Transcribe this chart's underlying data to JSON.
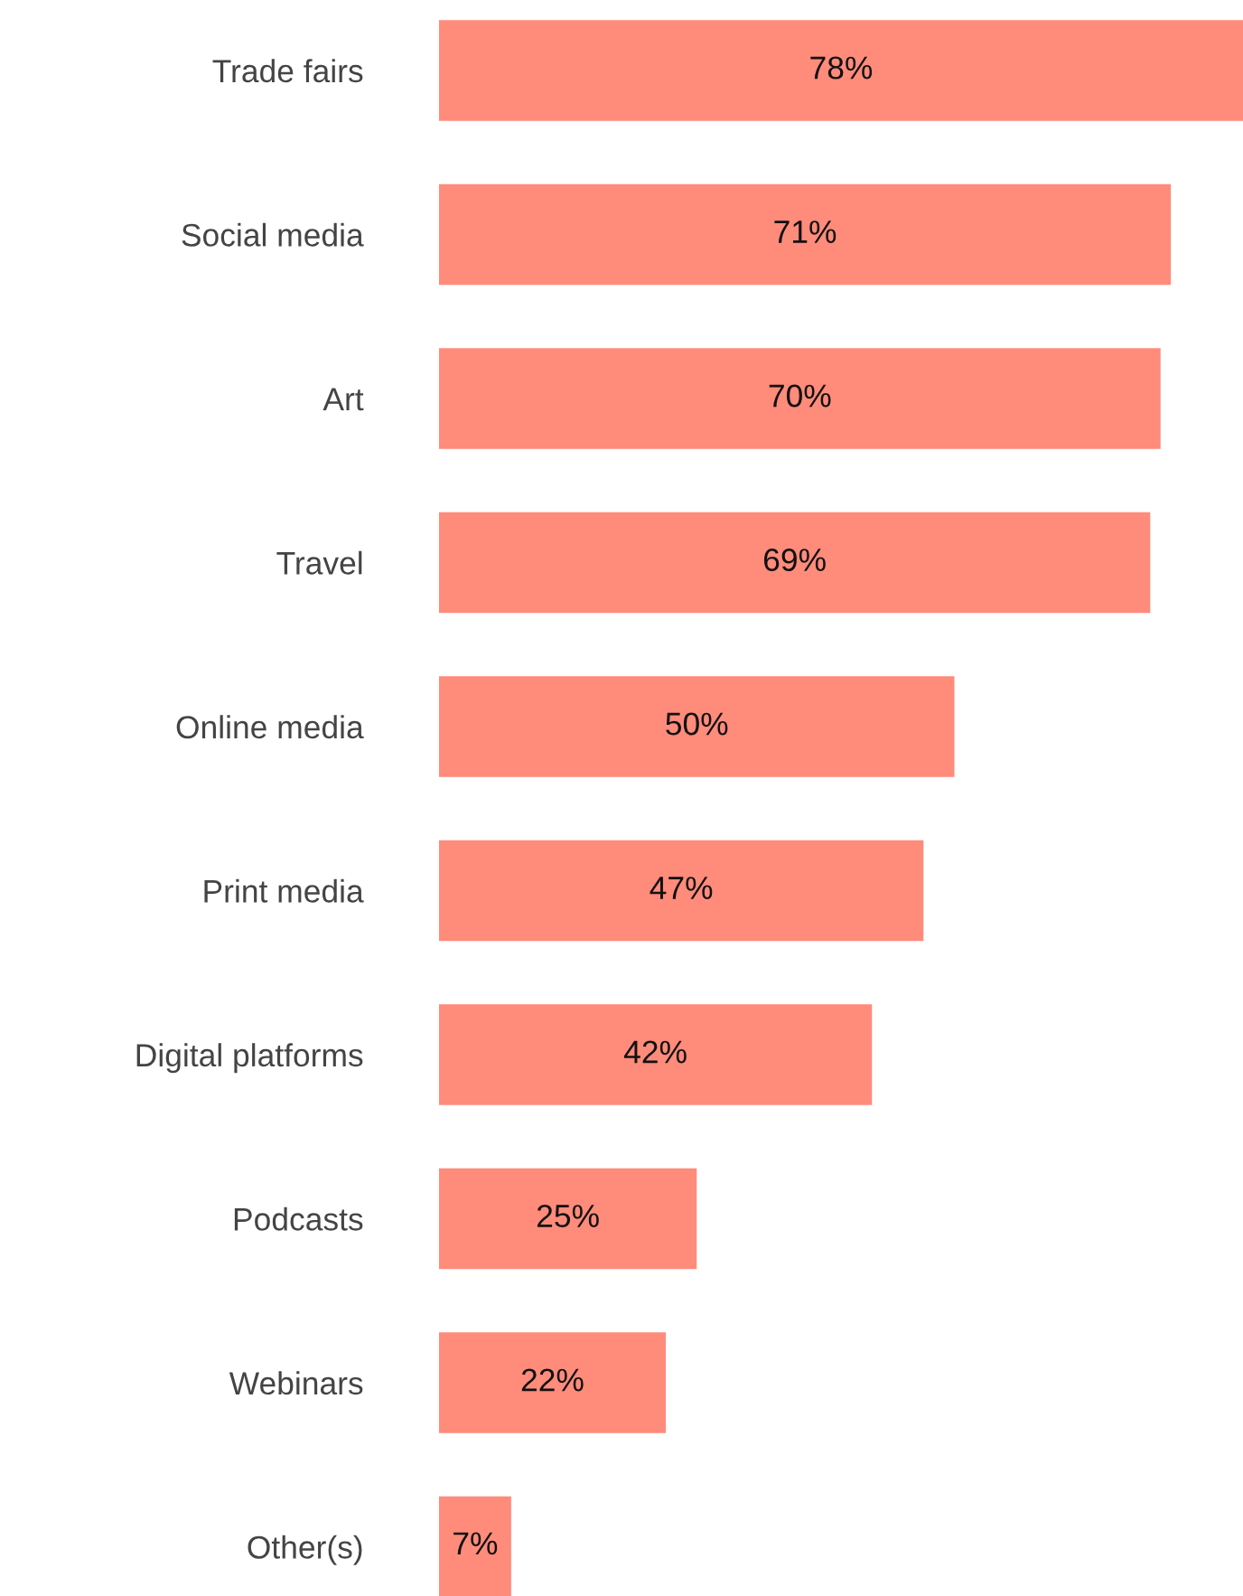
{
  "chart_data": {
    "type": "bar",
    "orientation": "horizontal",
    "color": "#ff8b7b",
    "value_labels": [
      "78%",
      "71%",
      "70%",
      "69%",
      "50%",
      "47%",
      "42%",
      "25%",
      "22%",
      "7%"
    ],
    "categories": [
      "Trade fairs",
      "Social media",
      "Art",
      "Travel",
      "Online media",
      "Print media",
      "Digital platforms",
      "Podcasts",
      "Webinars",
      "Other(s)"
    ],
    "values": [
      78,
      71,
      70,
      69,
      50,
      47,
      42,
      25,
      22,
      7
    ]
  }
}
